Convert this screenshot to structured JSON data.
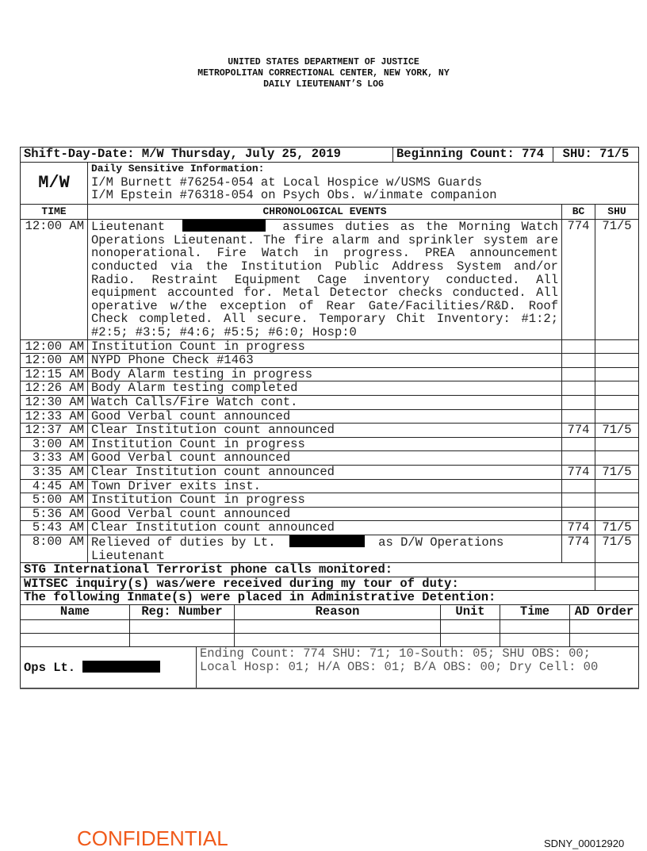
{
  "header": {
    "line1": "UNITED STATES DEPARTMENT OF JUSTICE",
    "line2": "METROPOLITAN CORRECTIONAL CENTER, NEW YORK, NY",
    "line3": "DAILY LIEUTENANT’S LOG"
  },
  "summary": {
    "shift_day_date": "Shift-Day-Date: M/W Thursday, July 25, 2019",
    "beginning_count": "Beginning Count: 774",
    "shu": "SHU: 71/5"
  },
  "shift": {
    "code": "M/W",
    "sensitive_title": "Daily Sensitive Information:",
    "sensitive_lines": [
      "I/M Burnett #76254-054 at Local Hospice w/USMS Guards",
      "I/M Epstein #76318-054 on Psych Obs. w/inmate companion"
    ]
  },
  "columns": {
    "time": "TIME",
    "events": "CHRONOLOGICAL EVENTS",
    "bc": "BC",
    "shu": "SHU"
  },
  "events": [
    {
      "time": "12:00 AM",
      "before": "Lieutenant",
      "after": "assumes duties as the Morning Watch Operations Lieutenant. The fire alarm and sprinkler system are nonoperational. Fire Watch in progress.  PREA announcement conducted via the Institution Public Address System and/or Radio. Restraint Equipment Cage inventory conducted. All equipment accounted for. Metal Detector checks conducted. All operative w/the exception of Rear Gate/Facilities/R&D.  Roof Check completed. All secure. Temporary Chit Inventory: #1:2; #2:5; #3:5; #4:6; #5:5; #6:0; Hosp:0",
      "bc": "774",
      "shu": "71/5"
    },
    {
      "time": "12:00 AM",
      "text": "Institution Count in progress",
      "bc": "",
      "shu": ""
    },
    {
      "time": "12:00 AM",
      "text": "NYPD Phone Check #1463",
      "bc": "",
      "shu": ""
    },
    {
      "time": "12:15 AM",
      "text": "Body Alarm testing in progress",
      "bc": "",
      "shu": ""
    },
    {
      "time": "12:26 AM",
      "text": "Body Alarm testing completed",
      "bc": "",
      "shu": ""
    },
    {
      "time": "12:30 AM",
      "text": "Watch Calls/Fire Watch cont.",
      "bc": "",
      "shu": ""
    },
    {
      "time": "12:33 AM",
      "text": "Good Verbal count announced",
      "bc": "",
      "shu": ""
    },
    {
      "time": "12:37 AM",
      "text": "Clear Institution count announced",
      "bc": "774",
      "shu": "71/5"
    },
    {
      "time": "3:00 AM",
      "text": "Institution Count in progress",
      "bc": "",
      "shu": ""
    },
    {
      "time": "3:33 AM",
      "text": "Good Verbal count announced",
      "bc": "",
      "shu": ""
    },
    {
      "time": "3:35 AM",
      "text": "Clear Institution count announced",
      "bc": "774",
      "shu": "71/5"
    },
    {
      "time": "4:45 AM",
      "text": "Town Driver exits inst.",
      "bc": "",
      "shu": ""
    },
    {
      "time": "5:00 AM",
      "text": "Institution Count in progress",
      "bc": "",
      "shu": ""
    },
    {
      "time": "5:36 AM",
      "text": "Good Verbal count announced",
      "bc": "",
      "shu": ""
    },
    {
      "time": "5:43 AM",
      "text": "Clear Institution count announced",
      "bc": "774",
      "shu": "71/5"
    },
    {
      "time": "8:00 AM",
      "before": "Relieved of duties by Lt.",
      "after": "as D/W Operations Lieutenant",
      "bc": "774",
      "shu": "71/5"
    }
  ],
  "notes": {
    "stg": "STG International Terrorist phone calls monitored:",
    "witsec": "WITSEC inquiry(s) was/were received during my tour of duty:",
    "ad": "The following Inmate(s) were placed in Administrative Detention:"
  },
  "ad_columns": [
    "Name",
    "Reg: Number",
    "Reason",
    "Unit",
    "Time",
    "AD Order"
  ],
  "footer": {
    "ops_lt": "Ops Lt.",
    "ending_line1": "Ending Count: 774 SHU: 71; 10-South: 05; SHU OBS: 00;",
    "ending_line2": "Local Hosp: 01; H/A OBS: 01; B/A OBS: 00; Dry Cell: 00"
  },
  "confidential": "CONFIDENTIAL",
  "bates": "SDNY_00012920",
  "colors": {
    "confidential": "#f05a1a"
  }
}
